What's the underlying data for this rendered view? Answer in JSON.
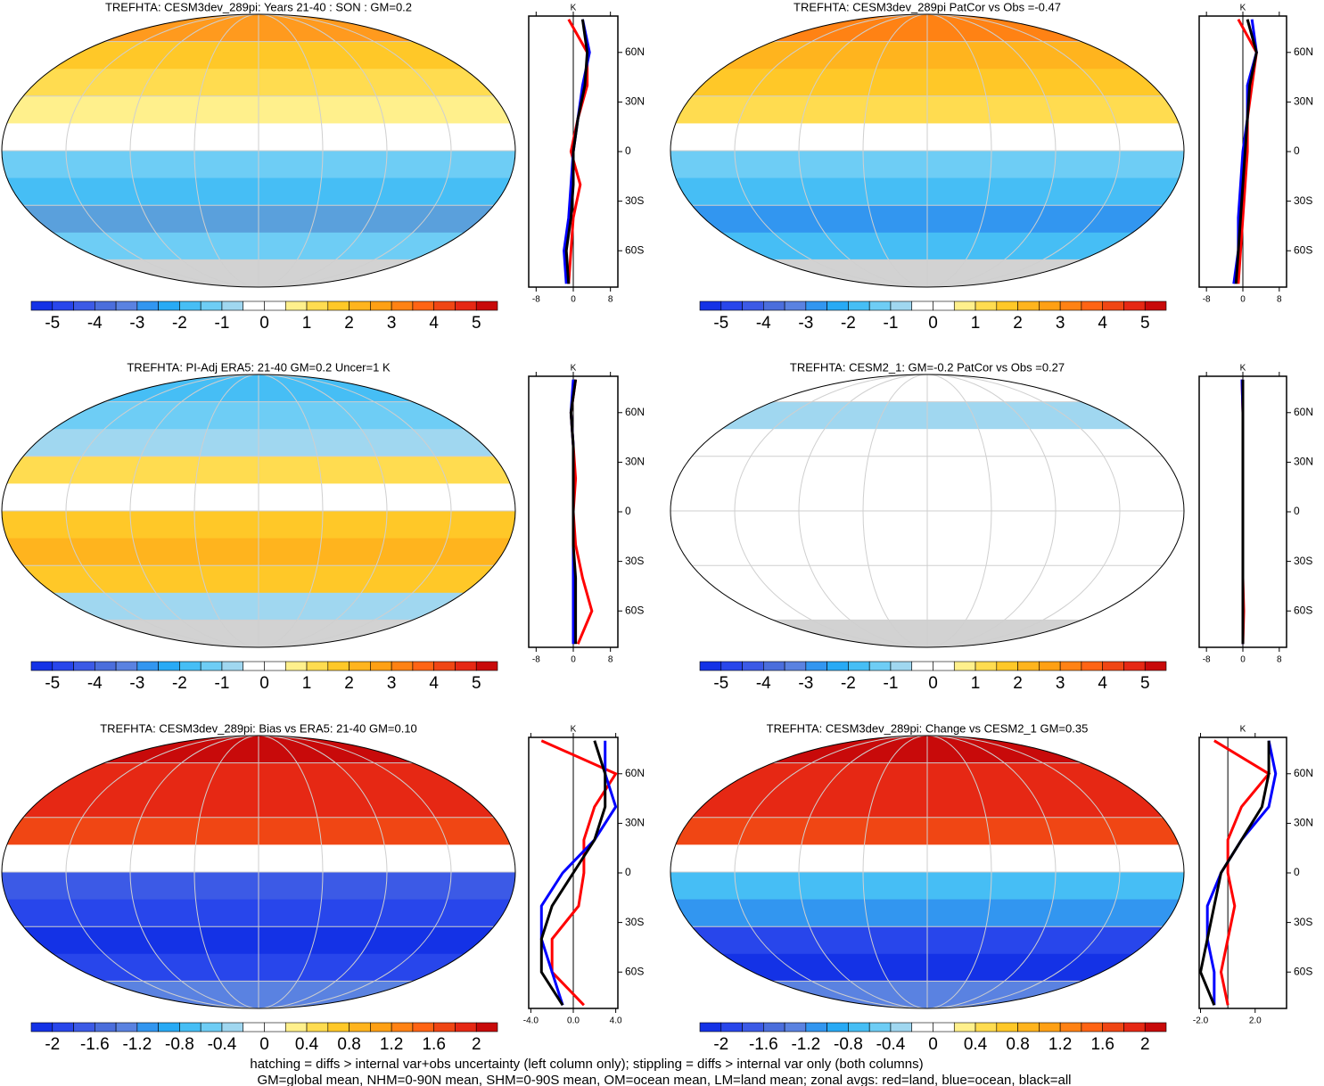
{
  "colorbar_colors": [
    "#1432e6",
    "#2846eb",
    "#3c5ae6",
    "#4b6edc",
    "#5a82e1",
    "#3296f0",
    "#28aaf5",
    "#46bef5",
    "#6ecdf5",
    "#a0d7f0",
    "#ffffff",
    "#ffffff",
    "#fff08c",
    "#ffdc50",
    "#ffc828",
    "#ffb41e",
    "#ffa014",
    "#ff8214",
    "#ff6414",
    "#f04614",
    "#e62814",
    "#c80a0a"
  ],
  "panels": [
    {
      "title": "TREFHTA: CESM3dev_289pi: Years 21-40 : SON : GM=0.2",
      "colorbar": {
        "lim": [
          -5.5,
          5.5
        ],
        "ticks": [
          -5,
          -4,
          -3,
          -2,
          -1,
          0,
          1,
          2,
          3,
          4,
          5
        ]
      },
      "zonal": {
        "unit": "K",
        "xlim": [
          -9.6,
          9.6
        ],
        "xticks": [
          -8,
          0,
          8
        ],
        "ylim": [
          -82,
          82
        ],
        "yticks": [
          {
            "value": 60,
            "label": "60N"
          },
          {
            "value": 30,
            "label": "30N"
          },
          0,
          {
            "value": -30,
            "label": "30S"
          },
          {
            "value": -60,
            "label": "60S"
          }
        ],
        "lat": [
          -80,
          -60,
          -40,
          -20,
          0,
          20,
          40,
          60,
          80
        ],
        "series": [
          {
            "color": "#ff0000",
            "values": [
              -1,
              -0.5,
              0,
              1.5,
              -0.5,
              1,
              3,
              3,
              -1
            ]
          },
          {
            "color": "#0000ff",
            "values": [
              -1.5,
              -2,
              -1,
              -0.5,
              0,
              1,
              2,
              3.5,
              2
            ]
          },
          {
            "color": "#000000",
            "values": [
              -1,
              -1.5,
              -0.5,
              0,
              0,
              1,
              2.5,
              3,
              2
            ]
          }
        ]
      }
    },
    {
      "title": "TREFHTA: CESM3dev_289pi PatCor vs Obs =-0.47",
      "colorbar": {
        "lim": [
          -5.5,
          5.5
        ],
        "ticks": [
          -5,
          -4,
          -3,
          -2,
          -1,
          0,
          1,
          2,
          3,
          4,
          5
        ]
      },
      "zonal": {
        "unit": "K",
        "xlim": [
          -9.6,
          9.6
        ],
        "xticks": [
          -8,
          0,
          8
        ],
        "ylim": [
          -82,
          82
        ],
        "yticks": [
          {
            "value": 60,
            "label": "60N"
          },
          {
            "value": 30,
            "label": "30N"
          },
          0,
          {
            "value": -30,
            "label": "30S"
          },
          {
            "value": -60,
            "label": "60S"
          }
        ],
        "lat": [
          -80,
          -60,
          -40,
          -20,
          0,
          20,
          40,
          60,
          80
        ],
        "series": [
          {
            "color": "#ff0000",
            "values": [
              -1,
              -0.5,
              0,
              0.5,
              1,
              1,
              2,
              3,
              -1
            ]
          },
          {
            "color": "#0000ff",
            "values": [
              -2,
              -1,
              -1,
              -0.5,
              0,
              1,
              1,
              3,
              2
            ]
          },
          {
            "color": "#000000",
            "values": [
              -1.5,
              -1,
              -0.5,
              0,
              0.5,
              1,
              1.5,
              3,
              1
            ]
          }
        ]
      }
    },
    {
      "title": "TREFHTA: PI-Adj ERA5: 21-40 GM=0.2 Uncer=1 K",
      "colorbar": {
        "lim": [
          -5.5,
          5.5
        ],
        "ticks": [
          -5,
          -4,
          -3,
          -2,
          -1,
          0,
          1,
          2,
          3,
          4,
          5
        ]
      },
      "zonal": {
        "unit": "K",
        "xlim": [
          -9.6,
          9.6
        ],
        "xticks": [
          -8,
          0,
          8
        ],
        "ylim": [
          -82,
          82
        ],
        "yticks": [
          {
            "value": 60,
            "label": "60N"
          },
          {
            "value": 30,
            "label": "30N"
          },
          0,
          {
            "value": -30,
            "label": "30S"
          },
          {
            "value": -60,
            "label": "60S"
          }
        ],
        "lat": [
          -80,
          -60,
          -40,
          -20,
          0,
          20,
          40,
          60,
          80
        ],
        "series": [
          {
            "color": "#ff0000",
            "values": [
              1,
              4,
              2,
              0.5,
              0,
              0.5,
              0,
              -0.5,
              0.5
            ]
          },
          {
            "color": "#0000ff",
            "values": [
              0,
              0,
              0,
              0,
              0,
              0,
              0,
              -0.5,
              0
            ]
          },
          {
            "color": "#000000",
            "values": [
              0.5,
              0.5,
              0.5,
              0,
              0,
              0,
              0,
              -0.5,
              0.5
            ]
          }
        ]
      }
    },
    {
      "title": "TREFHTA: CESM2_1: GM=-0.2 PatCor vs Obs =0.27",
      "colorbar": {
        "lim": [
          -5.5,
          5.5
        ],
        "ticks": [
          -5,
          -4,
          -3,
          -2,
          -1,
          0,
          1,
          2,
          3,
          4,
          5
        ]
      },
      "zonal": {
        "unit": "K",
        "xlim": [
          -9.6,
          9.6
        ],
        "xticks": [
          -8,
          0,
          8
        ],
        "ylim": [
          -82,
          82
        ],
        "yticks": [
          {
            "value": 60,
            "label": "60N"
          },
          {
            "value": 30,
            "label": "30N"
          },
          0,
          {
            "value": -30,
            "label": "30S"
          },
          {
            "value": -60,
            "label": "60S"
          }
        ],
        "lat": [
          -80,
          -60,
          -40,
          -20,
          0,
          20,
          40,
          60,
          80
        ],
        "series": [
          {
            "color": "#ff0000",
            "values": [
              0,
              0.2,
              0,
              0,
              0,
              0,
              0,
              0,
              -0.2
            ]
          },
          {
            "color": "#0000ff",
            "values": [
              0,
              0,
              0,
              0,
              0,
              0,
              0,
              0,
              -0.2
            ]
          },
          {
            "color": "#000000",
            "values": [
              0,
              0,
              0,
              0,
              0,
              0,
              0,
              0,
              0
            ]
          }
        ]
      }
    },
    {
      "title": "TREFHTA: CESM3dev_289pi: Bias vs ERA5: 21-40  GM=0.10",
      "colorbar": {
        "lim": [
          -2.2,
          2.2
        ],
        "ticks": [
          -2,
          -1.6,
          -1.2,
          -0.8,
          -0.4,
          0,
          0.4,
          0.8,
          1.2,
          1.6,
          2
        ]
      },
      "zonal": {
        "unit": "K",
        "xlim": [
          -4.2,
          4.2
        ],
        "xticks": [
          {
            "value": -4,
            "label": "-4.0"
          },
          {
            "value": 0,
            "label": "0.0"
          },
          {
            "value": 4,
            "label": "4.0"
          }
        ],
        "ylim": [
          -82,
          82
        ],
        "yticks": [
          {
            "value": 60,
            "label": "60N"
          },
          {
            "value": 30,
            "label": "30N"
          },
          0,
          {
            "value": -30,
            "label": "30S"
          },
          {
            "value": -60,
            "label": "60S"
          }
        ],
        "lat": [
          -80,
          -60,
          -40,
          -20,
          0,
          20,
          40,
          60,
          80
        ],
        "series": [
          {
            "color": "#ff0000",
            "values": [
              1,
              -2,
              -2,
              0.5,
              1,
              1,
              2,
              4,
              -3
            ]
          },
          {
            "color": "#0000ff",
            "values": [
              -1,
              -2,
              -3,
              -3,
              -1,
              2,
              4,
              3,
              3
            ]
          },
          {
            "color": "#000000",
            "values": [
              -1,
              -3,
              -3,
              -2,
              0,
              2,
              3,
              3,
              2
            ]
          }
        ]
      }
    },
    {
      "title": "TREFHTA: CESM3dev_289pi: Change vs CESM2_1 GM=0.35",
      "colorbar": {
        "lim": [
          -2.2,
          2.2
        ],
        "ticks": [
          -2,
          -1.6,
          -1.2,
          -0.8,
          -0.4,
          0,
          0.4,
          0.8,
          1.2,
          1.6,
          2
        ]
      },
      "zonal": {
        "unit": "K",
        "xlim": [
          -2.1,
          4.3
        ],
        "xticks": [
          {
            "value": -2,
            "label": "-2.0"
          },
          {
            "value": 2,
            "label": "2.0"
          }
        ],
        "ylim": [
          -82,
          82
        ],
        "yticks": [
          {
            "value": 60,
            "label": "60N"
          },
          {
            "value": 30,
            "label": "30N"
          },
          0,
          {
            "value": -30,
            "label": "30S"
          },
          {
            "value": -60,
            "label": "60S"
          }
        ],
        "lat": [
          -80,
          -60,
          -40,
          -20,
          0,
          20,
          40,
          60,
          80
        ],
        "series": [
          {
            "color": "#ff0000",
            "values": [
              0,
              -0.5,
              0,
              0.5,
              0,
              0,
              1,
              3,
              -1
            ]
          },
          {
            "color": "#0000ff",
            "values": [
              -1,
              -1,
              -1.5,
              -1.5,
              -0.5,
              1,
              3,
              3.5,
              3
            ]
          },
          {
            "color": "#000000",
            "values": [
              -1,
              -2,
              -1.5,
              -1,
              -0.5,
              1,
              2.5,
              3,
              3
            ]
          }
        ]
      }
    }
  ],
  "footnotes": [
    "hatching = diffs > internal var+obs uncertainty (left column only); stippling = diffs > internal var only (both columns)",
    "GM=global mean, NHM=0-90N mean, SHM=0-90S mean, OM=ocean mean, LM=land mean; zonal avgs: red=land, blue=ocean, black=all"
  ]
}
